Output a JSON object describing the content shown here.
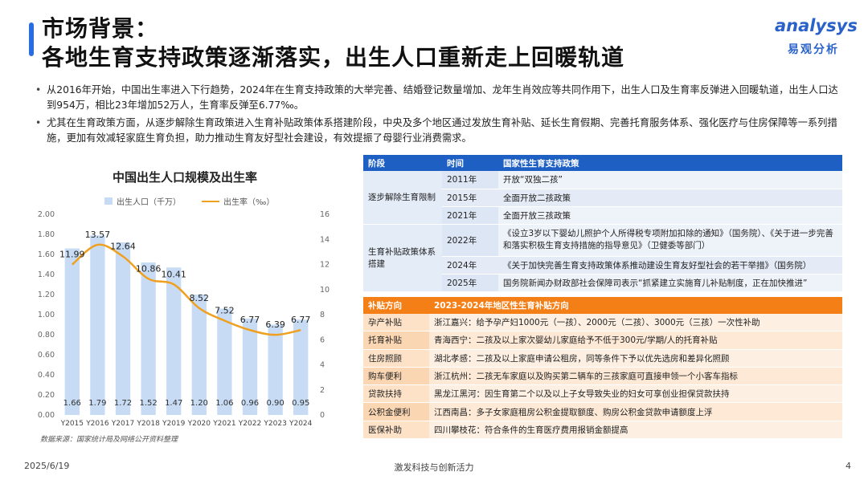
{
  "header": {
    "title_line1": "市场背景：",
    "title_line2": "各地生育支持政策逐渐落实，出生人口重新走上回暖轨道",
    "logo_main": "analysys",
    "logo_sub": "易观分析"
  },
  "bullets": [
    "从2016年开始，中国出生率进入下行趋势，2024年在生育支持政策的大举完善、结婚登记数量增加、龙年生肖效应等共同作用下，出生人口及生育率反弹进入回暖轨道，出生人口达到954万，相比23年增加52万人，生育率反弹至6.77‰。",
    "尤其在生育政策方面，从逐步解除生育政策进入生育补贴政策体系搭建阶段，中央及多个地区通过发放生育补贴、延长生育假期、完善托育服务体系、强化医疗与住房保障等一系列措施，更加有效减轻家庭生育负担，助力推动生育友好型社会建设，有效提振了母婴行业消费需求。"
  ],
  "chart_data": {
    "type": "bar",
    "title": "中国出生人口规模及出生率",
    "categories": [
      "Y2015",
      "Y2016",
      "Y2017",
      "Y2018",
      "Y2019",
      "Y2020",
      "Y2021",
      "Y2022",
      "Y2023",
      "Y2024"
    ],
    "series": [
      {
        "name": "出生人口（千万）",
        "type": "bar",
        "axis": "left",
        "values": [
          1.66,
          1.79,
          1.72,
          1.52,
          1.47,
          1.2,
          1.06,
          0.96,
          0.9,
          0.95
        ]
      },
      {
        "name": "出生率（‰）",
        "type": "line",
        "axis": "right",
        "values": [
          11.99,
          13.57,
          12.64,
          10.86,
          10.41,
          8.52,
          7.52,
          6.77,
          6.39,
          6.77
        ]
      }
    ],
    "left_ticks": [
      "0.00",
      "0.20",
      "0.40",
      "0.60",
      "0.80",
      "1.00",
      "1.20",
      "1.40",
      "1.60",
      "1.80",
      "2.00"
    ],
    "right_ticks": [
      "0",
      "2",
      "4",
      "6",
      "8",
      "10",
      "12",
      "14",
      "16"
    ],
    "ylim_left": [
      0,
      2.0
    ],
    "ylim_right": [
      0,
      16
    ],
    "legend_position": "top",
    "colors": {
      "bar": "#c7dcf4",
      "line": "#f0a020"
    }
  },
  "source": "数据来源：国家统计局及网络公开资料整理",
  "policy_table": {
    "headers": [
      "阶段",
      "时间",
      "国家性生育支持政策"
    ],
    "stages": [
      "逐步解除生育限制",
      "生育补贴政策体系搭建"
    ],
    "rows": [
      {
        "year": "2011年",
        "content": "开放“双独二孩”"
      },
      {
        "year": "2015年",
        "content": "全面开放二孩政策"
      },
      {
        "year": "2021年",
        "content": "全面开放三孩政策"
      },
      {
        "year": "2022年",
        "content": "《设立3岁以下婴幼儿照护个人所得税专项附加扣除的通知》（国务院）、《关于进一步完善和落实积极生育支持措施的指导意见》（卫健委等部门）"
      },
      {
        "year": "2024年",
        "content": "《关于加快完善生育支持政策体系推动建设生育友好型社会的若干举措》（国务院）"
      },
      {
        "year": "2025年",
        "content": "国务院新闻办财政部社会保障司表示“抓紧建立实施育儿补贴制度，正在加快推进”"
      }
    ]
  },
  "subsidy_table": {
    "headers": [
      "补贴方向",
      "2023-2024年地区性生育补贴方向"
    ],
    "rows": [
      {
        "category": "孕产补贴",
        "desc": "浙江嘉兴：给予孕产妇1000元（一孩）、2000元（二孩）、3000元（三孩）一次性补助"
      },
      {
        "category": "托育补贴",
        "desc": "青海西宁：二孩及以上家次婴幼儿家庭给予不低于300元/学期/人的托育补贴"
      },
      {
        "category": "住房照顾",
        "desc": "湖北孝感：二孩及以上家庭申请公租房，同等条件下予以优先选房和差异化照顾"
      },
      {
        "category": "购车便利",
        "desc": "浙江杭州：二孩无车家庭以及购买第二辆车的三孩家庭可直接申领一个小客车指标"
      },
      {
        "category": "贷款扶持",
        "desc": "黑龙江黑河：因生育第二个以及以上子女导致失业的妇女可享创业担保贷款扶持"
      },
      {
        "category": "公积金便利",
        "desc": "江西南昌：多子女家庭租房公积金提取额度、购房公积金贷款申请额度上浮"
      },
      {
        "category": "医保补助",
        "desc": "四川攀枝花：符合条件的生育医疗费用报销金额提高"
      }
    ]
  },
  "footer": {
    "date": "2025/6/19",
    "center": "激发科技与创新活力",
    "page": "4"
  }
}
